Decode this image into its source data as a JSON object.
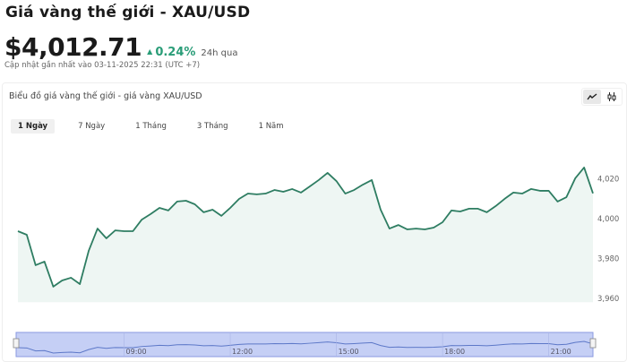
{
  "header": {
    "title": "Giá vàng thế giới - XAU/USD",
    "price": "$4,012.71",
    "change": "0.24%",
    "change_direction": "up",
    "change_period": "24h qua",
    "updated": "Cập nhật gần nhất vào 03-11-2025 22:31 (UTC +7)"
  },
  "colors": {
    "up": "#2a9d78",
    "line": "#2e7d62",
    "area": "#eef6f3",
    "navigator": "#c5cff5"
  },
  "chart_panel": {
    "title": "Biểu đồ giá vàng thế giới - giá vàng XAU/USD",
    "chart_types": [
      {
        "name": "line-chart-icon",
        "active": true
      },
      {
        "name": "candlestick-icon",
        "active": false
      }
    ],
    "tabs": [
      {
        "label": "1 Ngày",
        "active": true
      },
      {
        "label": "7 Ngày",
        "active": false
      },
      {
        "label": "1 Tháng",
        "active": false
      },
      {
        "label": "3 Tháng",
        "active": false
      },
      {
        "label": "1 Năm",
        "active": false
      }
    ]
  },
  "chart_data": {
    "type": "area",
    "x": [
      "06:00",
      "06:15",
      "06:30",
      "06:45",
      "07:00",
      "07:15",
      "07:30",
      "07:45",
      "08:00",
      "08:15",
      "08:30",
      "08:45",
      "09:00",
      "09:15",
      "09:30",
      "09:45",
      "10:00",
      "10:15",
      "10:30",
      "10:45",
      "11:00",
      "11:15",
      "11:30",
      "11:45",
      "12:00",
      "12:15",
      "12:30",
      "12:45",
      "13:00",
      "13:15",
      "13:30",
      "13:45",
      "14:00",
      "14:15",
      "14:30",
      "14:45",
      "15:00",
      "15:15",
      "15:30",
      "15:45",
      "16:00",
      "16:15",
      "16:30",
      "16:45",
      "17:00",
      "17:15",
      "17:30",
      "17:45",
      "18:00",
      "18:15",
      "18:30",
      "18:45",
      "19:00",
      "19:15",
      "19:30",
      "19:45",
      "20:00",
      "20:15",
      "20:30",
      "20:45",
      "21:00",
      "21:15",
      "21:30",
      "21:45",
      "22:00",
      "22:15"
    ],
    "values": [
      3993.7,
      3991.9,
      3976.6,
      3978.4,
      3965.8,
      3968.9,
      3970.3,
      3967.1,
      3983.8,
      3995.0,
      3990.1,
      3994.1,
      3993.7,
      3993.7,
      3999.5,
      4002.3,
      4005.4,
      4004.1,
      4008.6,
      4009.0,
      4007.2,
      4003.2,
      4004.5,
      4001.4,
      4005.4,
      4009.9,
      4012.6,
      4012.2,
      4012.6,
      4014.4,
      4013.5,
      4014.9,
      4013.1,
      4016.2,
      4019.4,
      4023.0,
      4018.9,
      4012.6,
      4014.4,
      4017.1,
      4019.4,
      4004.5,
      3995.0,
      3996.8,
      3994.6,
      3995.0,
      3994.6,
      3995.5,
      3998.2,
      4004.1,
      4003.6,
      4005.0,
      4005.0,
      4003.2,
      4006.3,
      4009.9,
      4013.1,
      4012.6,
      4014.9,
      4014.0,
      4014.0,
      4008.6,
      4010.8,
      4020.3,
      4025.7,
      4012.7
    ],
    "y_ticks": [
      "4,020",
      "4,000",
      "3,980",
      "3,960"
    ],
    "y_tick_values": [
      4020,
      4000,
      3980,
      3960
    ],
    "navigator_ticks": [
      "09:00",
      "12:00",
      "15:00",
      "18:00",
      "21:00"
    ],
    "ylim": [
      3958,
      4031
    ],
    "y_axis_position": "right",
    "grid": false,
    "legend": "none"
  }
}
